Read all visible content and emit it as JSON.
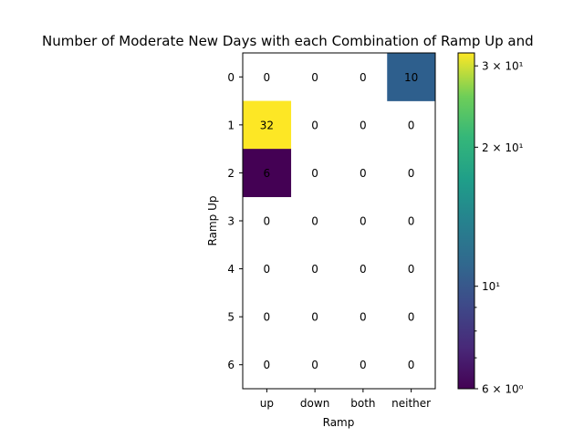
{
  "chart_data": {
    "type": "heatmap",
    "title": "Number of Moderate New Days with each Combination of Ramp Up and",
    "xlabel": "Ramp",
    "ylabel": "Ramp Up",
    "x_categories": [
      "up",
      "down",
      "both",
      "neither"
    ],
    "y_categories": [
      "0",
      "1",
      "2",
      "3",
      "4",
      "5",
      "6"
    ],
    "values": [
      [
        0,
        0,
        0,
        10
      ],
      [
        32,
        0,
        0,
        0
      ],
      [
        6,
        0,
        0,
        0
      ],
      [
        0,
        0,
        0,
        0
      ],
      [
        0,
        0,
        0,
        0
      ],
      [
        0,
        0,
        0,
        0
      ],
      [
        0,
        0,
        0,
        0
      ]
    ],
    "colorbar": {
      "scale": "log",
      "range": [
        6,
        32
      ],
      "colormap": "viridis",
      "major_ticks": [
        {
          "value": 30,
          "label": "3 × 10¹"
        },
        {
          "value": 20,
          "label": "2 × 10¹"
        },
        {
          "value": 10,
          "label": "10¹"
        },
        {
          "value": 6,
          "label": "6 × 10⁰"
        }
      ],
      "minor_ticks": [
        7,
        8,
        9
      ]
    },
    "colors": {
      "v6": "#440154",
      "v10": "#2e5f8d",
      "v32": "#fde725",
      "zero_cell": "#ffffff"
    },
    "grid": false
  }
}
